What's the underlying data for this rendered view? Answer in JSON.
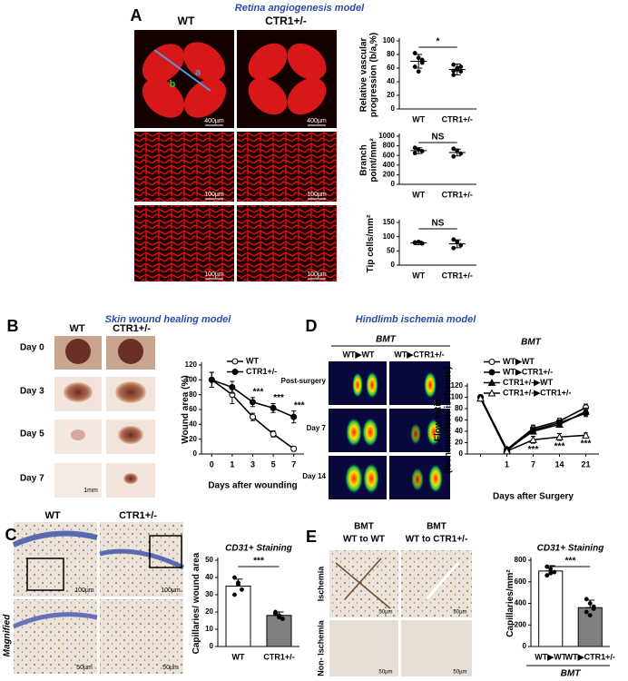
{
  "figure": {
    "panels": [
      "A",
      "B",
      "C",
      "D",
      "E"
    ],
    "titles": [
      "Retina angiogenesis model",
      "Skin wound healing model",
      "Hindlimb ischemia model"
    ],
    "a": {
      "columns": [
        "WT",
        "CTR1+/-"
      ],
      "arrow_labels": [
        "a",
        "b"
      ],
      "scale_bars": [
        "400µm",
        "400µm",
        "100µm",
        "100µm",
        "100µm",
        "100µm"
      ]
    },
    "b": {
      "columns": [
        "WT",
        "CTR1+/-"
      ],
      "rows": [
        "Day 0",
        "Day 3",
        "Day 5",
        "Day 7"
      ],
      "scale_bar": "1mm"
    },
    "c": {
      "columns": [
        "WT",
        "CTR1+/-"
      ],
      "row_label": "Magnified",
      "scale_bars": [
        "100µm",
        "100µm",
        "50µm",
        "50µm"
      ]
    },
    "d": {
      "group": "BMT",
      "columns": [
        "WT▶WT",
        "WT▶CTR1+/-"
      ],
      "rows": [
        "Post-surgery",
        "Day 7",
        "Day 14"
      ]
    },
    "e": {
      "columns": [
        [
          "BMT",
          "WT to WT"
        ],
        [
          "BMT",
          "WT to CTR1+/-"
        ]
      ],
      "rows": [
        "Ischemia",
        "Non- Ischemia"
      ],
      "scale_bars": [
        "50µm",
        "50µm",
        "50µm",
        "50µm"
      ]
    }
  },
  "chart_data": [
    {
      "type": "dot",
      "ylabel": "Relative vascular progression (b/a,%)",
      "categories": [
        "WT",
        "CTR1+/-"
      ],
      "values": [
        70,
        58
      ],
      "errors": [
        10,
        8
      ],
      "points": [
        [
          82,
          75,
          68,
          62,
          55,
          72
        ],
        [
          65,
          60,
          55,
          50,
          58,
          62,
          56
        ]
      ],
      "ylim": [
        0,
        100
      ],
      "yticks": [
        0,
        20,
        40,
        60,
        80,
        100
      ],
      "significance": "*",
      "color": "#000000"
    },
    {
      "type": "dot",
      "ylabel": "Branch point/mm²",
      "categories": [
        "WT",
        "CTR1+/-"
      ],
      "values": [
        700,
        660
      ],
      "errors": [
        60,
        70
      ],
      "points": [
        [
          760,
          720,
          690,
          650
        ],
        [
          740,
          700,
          640,
          580
        ]
      ],
      "ylim": [
        0,
        1000
      ],
      "yticks": [
        0,
        200,
        400,
        600,
        800,
        1000
      ],
      "significance": "NS",
      "color": "#000000"
    },
    {
      "type": "dot",
      "ylabel": "Tip cells/mm²",
      "categories": [
        "WT",
        "CTR1+/-"
      ],
      "values": [
        78,
        75
      ],
      "errors": [
        6,
        14
      ],
      "points": [
        [
          80,
          82,
          76,
          78
        ],
        [
          90,
          82,
          70,
          60
        ]
      ],
      "ylim": [
        0,
        150
      ],
      "yticks": [
        0,
        50,
        100,
        150
      ],
      "significance": "NS",
      "color": "#000000"
    },
    {
      "type": "line",
      "ylabel": "Wound area (%)",
      "xlabel": "Days after wounding",
      "categories": [
        "0",
        "1",
        "3",
        "5",
        "7"
      ],
      "series": [
        {
          "name": "WT",
          "color": "#000000",
          "marker": "circle",
          "fill": "#ffffff",
          "values": [
            100,
            80,
            50,
            27,
            7
          ],
          "errors": [
            10,
            12,
            5,
            4,
            3
          ]
        },
        {
          "name": "CTR1+/-",
          "color": "#000000",
          "marker": "circle",
          "fill": "#000000",
          "values": [
            100,
            90,
            70,
            62,
            50
          ],
          "errors": [
            10,
            8,
            6,
            6,
            8
          ]
        }
      ],
      "annotations": [
        {
          "text": "***",
          "x": "3",
          "position": "above"
        },
        {
          "text": "***",
          "x": "5",
          "position": "above"
        },
        {
          "text": "***",
          "x": "7",
          "position": "above"
        }
      ],
      "ylim": [
        0,
        120
      ],
      "yticks": [
        0,
        20,
        40,
        60,
        80,
        100,
        120
      ],
      "legend": "top-right"
    },
    {
      "type": "bar",
      "title": "CD31+ Staining",
      "ylabel": "Capillaries/ wound area",
      "categories": [
        "WT",
        "CTR1+/-"
      ],
      "values": [
        35,
        18
      ],
      "errors": [
        4,
        2
      ],
      "points": [
        [
          40,
          37,
          33,
          30,
          36
        ],
        [
          20,
          18,
          16,
          19,
          17
        ]
      ],
      "ylim": [
        0,
        50
      ],
      "yticks": [
        0,
        10,
        20,
        30,
        40,
        50
      ],
      "significance": "***",
      "colors": [
        "#ffffff",
        "#808080"
      ]
    },
    {
      "type": "line",
      "ylabel": "Flow ratio (Ischemic/Non-ischemic)",
      "xlabel": "Days after Surgery",
      "legend_title": "BMT",
      "categories": [
        null,
        "1",
        "7",
        "14",
        "21"
      ],
      "series": [
        {
          "name": "WT▶WT",
          "color": "#000000",
          "marker": "circle",
          "fill": "#ffffff",
          "values": [
            100,
            8,
            45,
            58,
            82
          ],
          "errors": [
            4,
            3,
            6,
            5,
            6
          ]
        },
        {
          "name": "WT▶CTR1+/-",
          "color": "#000000",
          "marker": "circle",
          "fill": "#000000",
          "values": [
            100,
            6,
            42,
            55,
            72
          ],
          "errors": [
            4,
            3,
            5,
            5,
            6
          ]
        },
        {
          "name": "CTR1+/-▶WT",
          "color": "#000000",
          "marker": "triangle",
          "fill": "#000000",
          "values": [
            98,
            8,
            40,
            52,
            75
          ],
          "errors": [
            4,
            3,
            5,
            5,
            6
          ]
        },
        {
          "name": "CTR1+/-▶CTR1+/-",
          "color": "#000000",
          "marker": "triangle",
          "fill": "#ffffff",
          "values": [
            98,
            5,
            25,
            30,
            33
          ],
          "errors": [
            4,
            2,
            6,
            6,
            4
          ]
        }
      ],
      "annotations": [
        {
          "text": "***",
          "x": "7",
          "position": "below"
        },
        {
          "text": "***",
          "x": "14",
          "position": "below"
        },
        {
          "text": "***",
          "x": "21",
          "position": "below"
        }
      ],
      "ylim": [
        0,
        120
      ],
      "yticks": [
        0,
        20,
        40,
        60,
        80,
        100,
        120
      ],
      "legend": "top-right"
    },
    {
      "type": "bar",
      "title": "CD31+ Staining",
      "ylabel": "Capillaries/mm²",
      "x_group_label": "BMT",
      "categories": [
        "WT▶WT",
        "WT▶CTR1+/-"
      ],
      "values": [
        700,
        360
      ],
      "errors": [
        50,
        70
      ],
      "points": [
        [
          740,
          720,
          690,
          660,
          680
        ],
        [
          440,
          400,
          350,
          320,
          290,
          370
        ]
      ],
      "ylim": [
        0,
        800
      ],
      "yticks": [
        0,
        200,
        400,
        600,
        800
      ],
      "significance": "***",
      "colors": [
        "#ffffff",
        "#808080"
      ]
    }
  ]
}
